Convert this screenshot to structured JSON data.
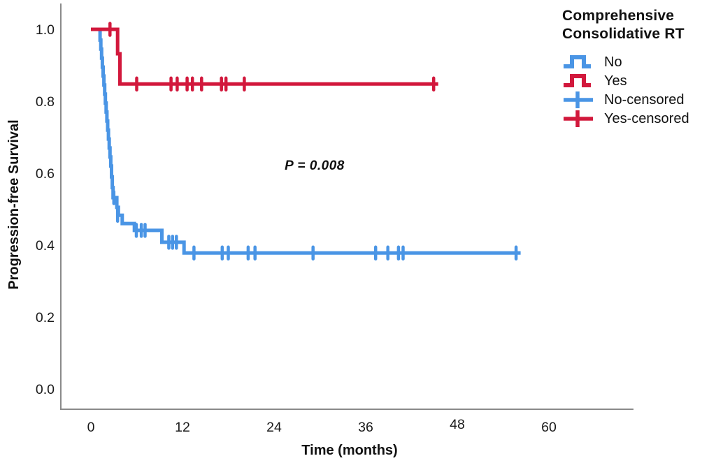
{
  "colors": {
    "no": "#4a95e5",
    "yes": "#d2183c",
    "axis": "#8a8a8a",
    "text": "#111111"
  },
  "legend": {
    "title_line1": "Comprehensive",
    "title_line2": "Consolidative RT",
    "items": [
      {
        "label": "No",
        "color_key": "no",
        "glyph": "step-line"
      },
      {
        "label": "Yes",
        "color_key": "yes",
        "glyph": "step-line"
      },
      {
        "label": "No-censored",
        "color_key": "no",
        "glyph": "plus"
      },
      {
        "label": "Yes-censored",
        "color_key": "yes",
        "glyph": "plus"
      }
    ]
  },
  "chart_data": {
    "type": "line",
    "subtype": "kaplan-meier-step",
    "title": "",
    "xlabel": "Time (months)",
    "ylabel": "Progression-free Survival",
    "xlim": [
      -3.9,
      71.1
    ],
    "ylim": [
      0,
      1.06
    ],
    "grid": false,
    "legend_position": "top-right",
    "annotation": {
      "text": "P = 0.008",
      "x_month": 29.3,
      "y_survival": 0.61
    },
    "x_ticks": [
      {
        "label": "0",
        "value": 0,
        "small": false
      },
      {
        "label": "12",
        "value": 12,
        "small": false
      },
      {
        "label": "24",
        "value": 24,
        "small": false
      },
      {
        "label": "36",
        "value": 36,
        "small": false
      },
      {
        "label": "48",
        "value": 48,
        "small": true
      },
      {
        "label": "60",
        "value": 60,
        "small": false
      }
    ],
    "y_ticks": [
      {
        "label": "1.0",
        "value": 1.0
      },
      {
        "label": "0.8",
        "value": 0.8
      },
      {
        "label": "0.6",
        "value": 0.6
      },
      {
        "label": "0.4",
        "value": 0.4
      },
      {
        "label": "0.2",
        "value": 0.2
      },
      {
        "label": "0.0",
        "value": 0.0
      }
    ],
    "series": [
      {
        "name": "No",
        "color_key": "no",
        "points": [
          [
            0,
            1.0
          ],
          [
            1.2,
            0.97
          ],
          [
            1.3,
            0.945
          ],
          [
            1.4,
            0.92
          ],
          [
            1.5,
            0.895
          ],
          [
            1.6,
            0.87
          ],
          [
            1.7,
            0.845
          ],
          [
            1.8,
            0.82
          ],
          [
            1.9,
            0.795
          ],
          [
            2.0,
            0.77
          ],
          [
            2.1,
            0.745
          ],
          [
            2.2,
            0.72
          ],
          [
            2.3,
            0.695
          ],
          [
            2.4,
            0.67
          ],
          [
            2.5,
            0.645
          ],
          [
            2.6,
            0.62
          ],
          [
            2.7,
            0.59
          ],
          [
            2.8,
            0.56
          ],
          [
            2.9,
            0.532
          ],
          [
            3.4,
            0.505
          ],
          [
            3.6,
            0.483
          ],
          [
            4.1,
            0.46
          ],
          [
            5.7,
            0.441
          ],
          [
            9.3,
            0.408
          ],
          [
            12.2,
            0.378
          ]
        ],
        "end_month": 56.3,
        "censored": [
          [
            3.0,
            0.532
          ],
          [
            3.5,
            0.483
          ],
          [
            5.95,
            0.441
          ],
          [
            6.6,
            0.441
          ],
          [
            7.1,
            0.441
          ],
          [
            10.2,
            0.408
          ],
          [
            10.7,
            0.408
          ],
          [
            11.2,
            0.408
          ],
          [
            13.5,
            0.378
          ],
          [
            17.2,
            0.378
          ],
          [
            18.0,
            0.378
          ],
          [
            20.6,
            0.378
          ],
          [
            21.5,
            0.378
          ],
          [
            29.1,
            0.378
          ],
          [
            37.3,
            0.378
          ],
          [
            38.9,
            0.378
          ],
          [
            40.3,
            0.378
          ],
          [
            40.9,
            0.378
          ],
          [
            55.7,
            0.378
          ]
        ]
      },
      {
        "name": "Yes",
        "color_key": "yes",
        "points": [
          [
            0,
            1.0
          ],
          [
            3.5,
            0.932
          ],
          [
            3.8,
            0.848
          ]
        ],
        "end_month": 45.5,
        "censored": [
          [
            2.5,
            1.0
          ],
          [
            6.0,
            0.848
          ],
          [
            10.5,
            0.848
          ],
          [
            11.3,
            0.848
          ],
          [
            12.6,
            0.848
          ],
          [
            13.3,
            0.848
          ],
          [
            14.5,
            0.848
          ],
          [
            17.1,
            0.848
          ],
          [
            17.7,
            0.848
          ],
          [
            20.1,
            0.848
          ],
          [
            44.9,
            0.848
          ]
        ]
      }
    ]
  }
}
